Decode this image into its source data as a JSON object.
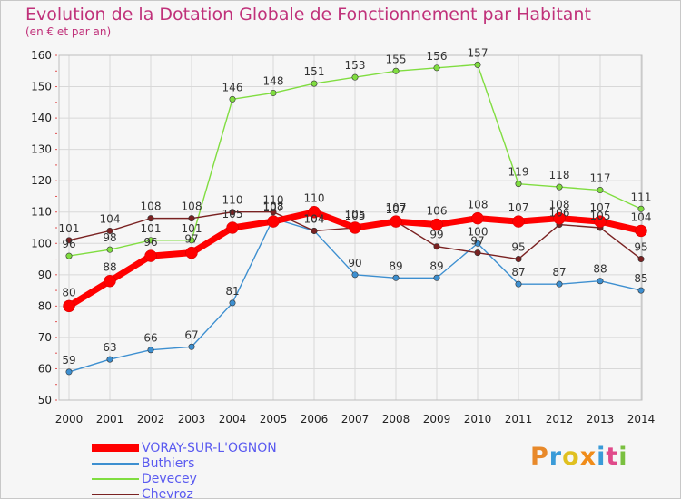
{
  "header": {
    "title": "Evolution de la Dotation Globale de Fonctionnement par Habitant",
    "subtitle": "(en € et par an)"
  },
  "chart_data": {
    "type": "line",
    "title": "Evolution de la Dotation Globale de Fonctionnement par Habitant",
    "subtitle": "(en € et par an)",
    "categories": [
      "2000",
      "2001",
      "2002",
      "2003",
      "2004",
      "2005",
      "2006",
      "2007",
      "2008",
      "2009",
      "2010",
      "2011",
      "2012",
      "2013",
      "2014"
    ],
    "ylim": [
      50,
      160
    ],
    "yticks": [
      50,
      60,
      70,
      80,
      90,
      100,
      110,
      120,
      130,
      140,
      150,
      160
    ],
    "grid": true,
    "legend_position": "bottom-left",
    "series": [
      {
        "name": "VORAY-SUR-L'OGNON",
        "color": "#ff0000",
        "values": [
          80,
          88,
          96,
          97,
          105,
          107,
          110,
          105,
          107,
          106,
          108,
          107,
          108,
          107,
          104
        ]
      },
      {
        "name": "Buthiers",
        "color": "#3d8fd0",
        "values": [
          59,
          63,
          66,
          67,
          81,
          108,
          104,
          90,
          89,
          89,
          100,
          87,
          87,
          88,
          85
        ]
      },
      {
        "name": "Devecey",
        "color": "#80dd40",
        "values": [
          96,
          98,
          101,
          101,
          146,
          148,
          151,
          153,
          155,
          156,
          157,
          119,
          118,
          117,
          111
        ]
      },
      {
        "name": "Chevroz",
        "color": "#7a2222",
        "values": [
          101,
          104,
          108,
          108,
          110,
          110,
          104,
          105,
          107,
          99,
          97,
          95,
          106,
          105,
          95
        ]
      }
    ]
  },
  "legend": {
    "items": [
      {
        "label": "VORAY-SUR-L'OGNON",
        "color": "#ff0000"
      },
      {
        "label": "Buthiers",
        "color": "#3d8fd0"
      },
      {
        "label": "Devecey",
        "color": "#80dd40"
      },
      {
        "label": "Chevroz",
        "color": "#7a2222"
      }
    ]
  },
  "logo": {
    "text": "Proxiti"
  }
}
